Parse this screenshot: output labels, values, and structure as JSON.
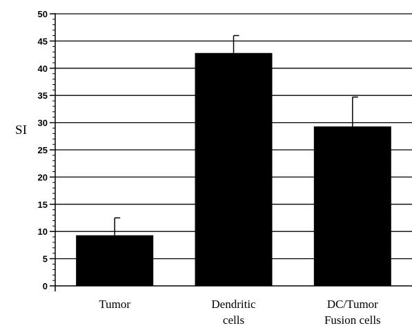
{
  "chart_data": {
    "type": "bar",
    "title": "",
    "xlabel": "",
    "ylabel": "SI",
    "ylim": [
      0,
      50
    ],
    "y_major_step": 5,
    "y_minor_step": 1,
    "grid": true,
    "categories": [
      [
        "Tumor"
      ],
      [
        "Dendritic",
        "cells"
      ],
      [
        "DC/Tumor",
        "Fusion cells"
      ]
    ],
    "values": [
      9.3,
      42.8,
      29.3
    ],
    "errors": [
      3.2,
      3.2,
      5.4
    ],
    "bar_color": "#000000",
    "grid_color": "#000000"
  }
}
